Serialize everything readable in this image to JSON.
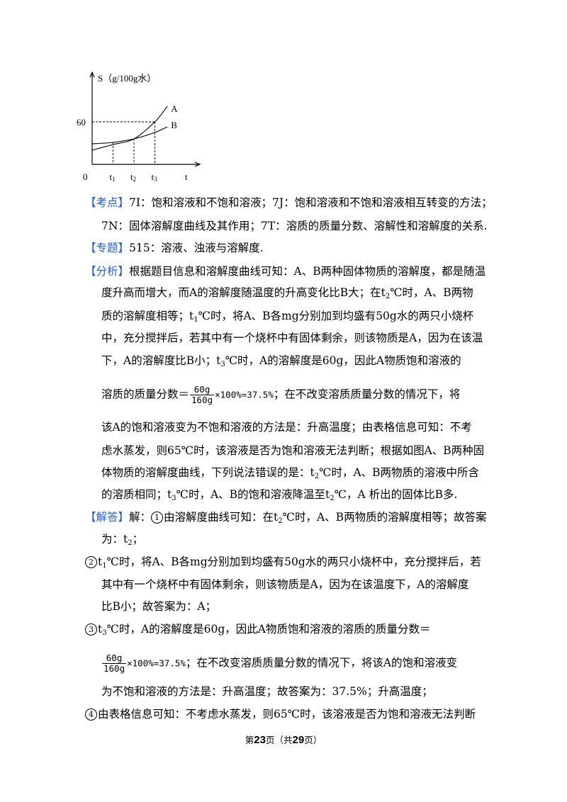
{
  "chart_data": {
    "type": "line",
    "ylabel": "S（g/100g水）",
    "xlabel": "t",
    "origin_label": "0",
    "y_tick": "60",
    "x_ticks": [
      {
        "base": "t",
        "sub": "1"
      },
      {
        "base": "t",
        "sub": "2"
      },
      {
        "base": "t",
        "sub": "3"
      }
    ],
    "series": [
      {
        "name": "A",
        "points": [
          [
            0,
            20
          ],
          [
            1,
            28
          ],
          [
            2,
            36
          ],
          [
            3,
            60
          ],
          [
            3.6,
            82
          ]
        ]
      },
      {
        "name": "B",
        "points": [
          [
            0,
            29
          ],
          [
            1,
            31
          ],
          [
            2,
            36
          ],
          [
            3,
            45
          ],
          [
            3.6,
            53
          ]
        ]
      }
    ]
  },
  "kaodian": {
    "tag": "【考点】",
    "line1": "7I：饱和溶液和不饱和溶液；7J：饱和溶液和不饱和溶液相互转变的方法；",
    "line2": "7N：固体溶解度曲线及其作用；7T：溶质的质量分数、溶解性和溶解度的关系."
  },
  "zhuanti": {
    "tag": "【专题】",
    "text": "515：溶液、浊液与溶解度."
  },
  "fenxi": {
    "tag": "【分析】",
    "l1": "根据题目信息和溶解度曲线可知：A、B两种固体物质的溶解度，都是随温",
    "l2a": "度升高而增大，而A的溶解度随温度的升高变化比B大；在t",
    "l2sub": "2",
    "l2b": "℃时，A、B两物",
    "l3a": "质的溶解度相等；t",
    "l3sub": "1",
    "l3b": "℃时，将A、B各mg分别加到均盛有50g水的两只小烧杯",
    "l4": "中，充分搅拌后，若其中有一个烧杯中有固体剩余，则该物质是A，因为在该温",
    "l5a": "下，A的溶解度比B小；t",
    "l5sub": "3",
    "l5b": "℃时，A的溶解度是60g，因此A物质饱和溶液的",
    "l6a": "溶质的质量分数＝",
    "frac_num": "60g",
    "frac_den": "160g",
    "frac_tail": "×100%=37.5%",
    "l6b": "；在不改变溶质质量分数的情况下，将",
    "l7": "该A的饱和溶液变为不饱和溶液的方法是：升高温度；由表格信息可知：不考",
    "l8": "虑水蒸发，则65℃时，该溶液是否为饱和溶液无法判断；根据如图A、B两种固",
    "l9a": "体物质的溶解度曲线，下列说法错误的是：t",
    "l9sub": "2",
    "l9b": "℃时，A、B两物质的溶液中所含",
    "l10a": "的溶质相同；t",
    "l10sub": "3",
    "l10b": "℃时，A、B的饱和溶液降温至t",
    "l10sub2": "2",
    "l10c": "℃，A 析出的固体比B多."
  },
  "jieda": {
    "tag": "【解答】",
    "l1a": "解：",
    "c1": "1",
    "l1b": "由溶解度曲线可知：在t",
    "l1sub": "2",
    "l1c": "℃时，A、B两物质的溶解度相等；故答案",
    "l2a": "为：t",
    "l2sub": "2",
    "l2b": "；",
    "c2": "2",
    "l3a": "t",
    "l3sub": "1",
    "l3b": "℃时，将A、B各mg分别加到均盛有50g水的两只小烧杯中，充分搅拌后，若",
    "l4": "其中有一个烧杯中有固体剩余，则该物质是A，因为在该温度下，A的溶解度",
    "l5": "比B小；故答案为：A；",
    "c3": "3",
    "l6a": "t",
    "l6sub": "3",
    "l6b": "℃时，A的溶解度是60g，因此A物质饱和溶液的溶质的质量分数＝",
    "frac_num": "60g",
    "frac_den": "160g",
    "frac_tail": "×100%=37.5%",
    "l7b": "；在不改变溶质质量分数的情况下，将该A的饱和溶液变",
    "l8": "为不饱和溶液的方法是：升高温度；故答案为：37.5%；升高温度；",
    "c4": "4",
    "l9": "由表格信息可知：不考虑水蒸发，则65℃时，该溶液是否为饱和溶液无法判断"
  },
  "footer": {
    "pre": "第",
    "page": "23",
    "mid": "页（共",
    "total": "29",
    "post": "页）"
  }
}
